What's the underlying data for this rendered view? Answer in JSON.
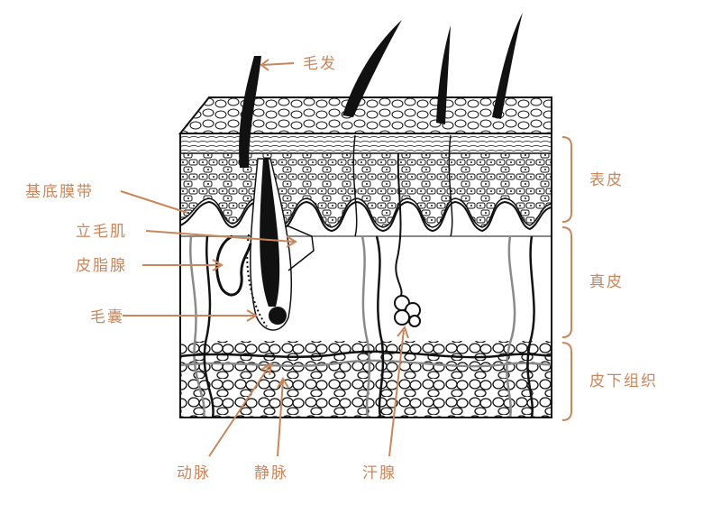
{
  "labels": {
    "hair": "毛发",
    "basement_membrane": "基底膜带",
    "arrector_pili": "立毛肌",
    "sebaceous_gland": "皮脂腺",
    "hair_follicle": "毛囊",
    "epidermis": "表皮",
    "dermis": "真皮",
    "subcutaneous": "皮下组织",
    "artery": "动脉",
    "vein": "静脉",
    "sweat_gland": "汗腺"
  },
  "colors": {
    "label": "#c9865b",
    "ink": "#111111",
    "vessel_gray": "#8a8a8a",
    "background": "#ffffff"
  }
}
